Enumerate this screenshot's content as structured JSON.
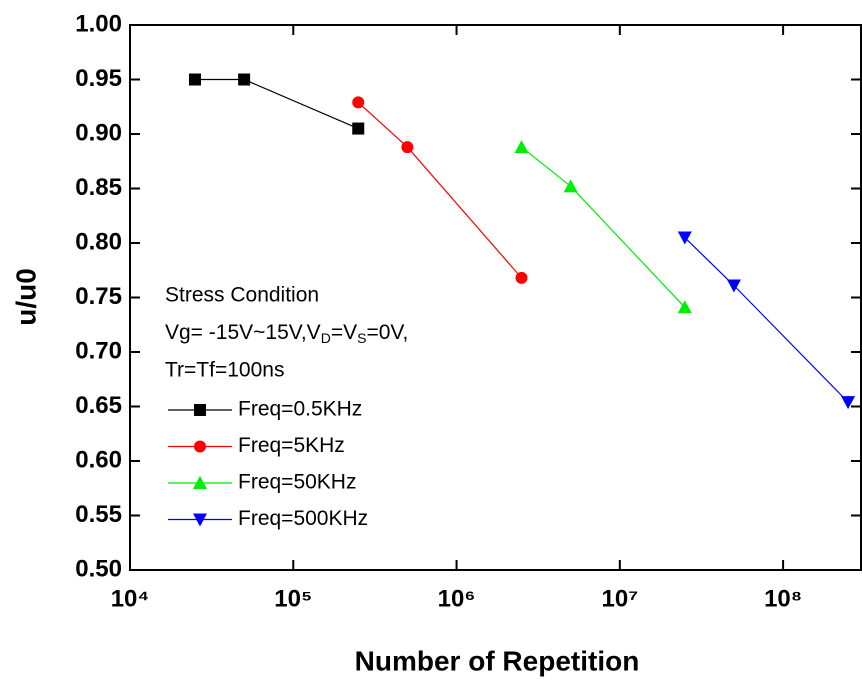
{
  "chart_data": {
    "type": "line",
    "xlabel": "Number of Repetition",
    "ylabel": "u/u0",
    "xscale": "log",
    "xlim": [
      10000,
      300000000
    ],
    "ylim": [
      0.5,
      1.0
    ],
    "xticks": [
      {
        "value": 10000,
        "label": "10⁴"
      },
      {
        "value": 100000,
        "label": "10⁵"
      },
      {
        "value": 1000000,
        "label": "10⁶"
      },
      {
        "value": 10000000,
        "label": "10⁷"
      },
      {
        "value": 100000000,
        "label": "10⁸"
      }
    ],
    "yticks": [
      {
        "value": 0.5,
        "label": "0.50"
      },
      0.55,
      {
        "value": 0.6,
        "label": "0.60"
      },
      0.65,
      {
        "value": 0.7,
        "label": "0.70"
      },
      0.75,
      {
        "value": 0.8,
        "label": "0.80"
      },
      0.85,
      {
        "value": 0.9,
        "label": "0.90"
      },
      0.95,
      {
        "value": 1.0,
        "label": "1.00"
      }
    ],
    "annotation": [
      "Stress Condition",
      [
        "Vg= -15V~15V,V",
        "D",
        "=V",
        "S",
        "=0V,"
      ],
      "Tr=Tf=100ns"
    ],
    "series": [
      {
        "name": "Freq=0.5KHz",
        "color": "#000000",
        "marker": "square",
        "x": [
          25000,
          50000,
          250000
        ],
        "values": [
          0.95,
          0.95,
          0.905
        ]
      },
      {
        "name": "Freq=5KHz",
        "color": "#ff0000",
        "marker": "circle",
        "x": [
          250000,
          500000,
          2500000
        ],
        "values": [
          0.929,
          0.888,
          0.768
        ]
      },
      {
        "name": "Freq=50KHz",
        "color": "#00ee00",
        "marker": "triangle-up",
        "x": [
          2500000,
          5000000,
          25000000
        ],
        "values": [
          0.888,
          0.852,
          0.741
        ]
      },
      {
        "name": "Freq=500KHz",
        "color": "#0000ff",
        "marker": "triangle-down",
        "x": [
          25000000,
          50000000,
          250000000
        ],
        "values": [
          0.805,
          0.761,
          0.654
        ]
      }
    ]
  }
}
